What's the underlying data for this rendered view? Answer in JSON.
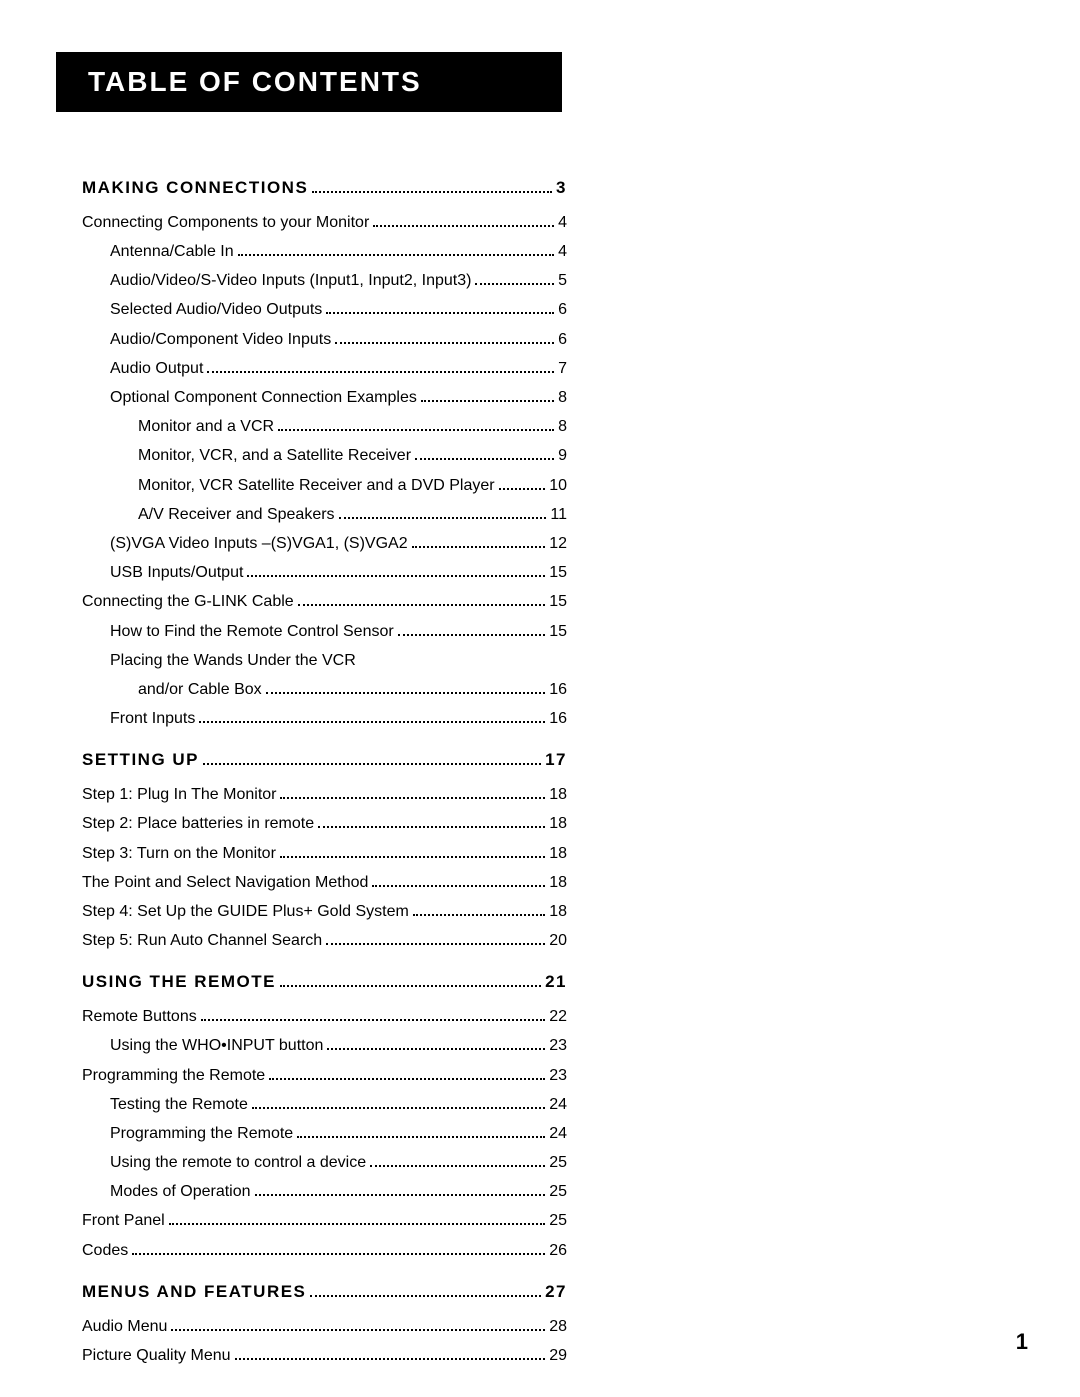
{
  "header": {
    "title": "Table of Contents"
  },
  "page_number": "1",
  "sections": [
    {
      "heading": {
        "label": "Making Connections",
        "page": "3"
      },
      "entries": [
        {
          "level": 0,
          "label": "Connecting Components to your Monitor",
          "page": "4"
        },
        {
          "level": 1,
          "label": "Antenna/Cable In",
          "page": "4"
        },
        {
          "level": 1,
          "label": "Audio/Video/S-Video Inputs (Input1, Input2, Input3)",
          "page": "5"
        },
        {
          "level": 1,
          "label": "Selected Audio/Video Outputs",
          "page": "6"
        },
        {
          "level": 1,
          "label": "Audio/Component Video Inputs",
          "page": "6"
        },
        {
          "level": 1,
          "label": "Audio Output",
          "page": "7"
        },
        {
          "level": 1,
          "label": "Optional Component Connection Examples",
          "page": "8"
        },
        {
          "level": 2,
          "label": "Monitor and a VCR",
          "page": "8"
        },
        {
          "level": 2,
          "label": "Monitor, VCR, and a Satellite Receiver",
          "page": "9"
        },
        {
          "level": 2,
          "label": "Monitor, VCR Satellite Receiver and a DVD Player",
          "page": "10"
        },
        {
          "level": 2,
          "label": "A/V Receiver and Speakers",
          "page": "11"
        },
        {
          "level": 1,
          "label": "(S)VGA Video Inputs –(S)VGA1, (S)VGA2",
          "page": "12"
        },
        {
          "level": 1,
          "label": "USB Inputs/Output",
          "page": "15"
        },
        {
          "level": 0,
          "label": "Connecting the G-LINK Cable",
          "page": "15"
        },
        {
          "level": 1,
          "label": "How to Find the Remote Control Sensor",
          "page": "15"
        },
        {
          "level": 1,
          "label": "Placing the Wands Under the VCR",
          "page": ""
        },
        {
          "level": 2,
          "label": "and/or Cable Box",
          "page": "16"
        },
        {
          "level": 1,
          "label": "Front Inputs",
          "page": "16"
        }
      ]
    },
    {
      "heading": {
        "label": "Setting Up",
        "page": "17"
      },
      "entries": [
        {
          "level": 0,
          "label": "Step 1: Plug In The Monitor",
          "page": "18"
        },
        {
          "level": 0,
          "label": "Step 2: Place batteries in remote",
          "page": "18"
        },
        {
          "level": 0,
          "label": "Step 3: Turn on the Monitor",
          "page": "18"
        },
        {
          "level": 0,
          "label": "The Point and Select Navigation Method",
          "page": "18"
        },
        {
          "level": 0,
          "label": "Step 4: Set Up the GUIDE Plus+ Gold System",
          "page": "18"
        },
        {
          "level": 0,
          "label": "Step 5: Run Auto Channel Search",
          "page": "20"
        }
      ]
    },
    {
      "heading": {
        "label": "Using the Remote",
        "page": "21"
      },
      "entries": [
        {
          "level": 0,
          "label": "Remote Buttons",
          "page": "22"
        },
        {
          "level": 1,
          "label": "Using the WHO•INPUT button",
          "page": "23"
        },
        {
          "level": 0,
          "label": "Programming the Remote",
          "page": "23"
        },
        {
          "level": 1,
          "label": "Testing the Remote",
          "page": "24"
        },
        {
          "level": 1,
          "label": "Programming the Remote",
          "page": "24"
        },
        {
          "level": 1,
          "label": "Using the remote to control a device",
          "page": "25"
        },
        {
          "level": 1,
          "label": "Modes of Operation",
          "page": "25"
        },
        {
          "level": 0,
          "label": "Front Panel",
          "page": "25"
        },
        {
          "level": 0,
          "label": "Codes",
          "page": "26"
        }
      ]
    },
    {
      "heading": {
        "label": "Menus and Features",
        "page": "27"
      },
      "entries": [
        {
          "level": 0,
          "label": "Audio Menu",
          "page": "28"
        },
        {
          "level": 0,
          "label": "Picture Quality Menu",
          "page": "29"
        }
      ]
    }
  ]
}
